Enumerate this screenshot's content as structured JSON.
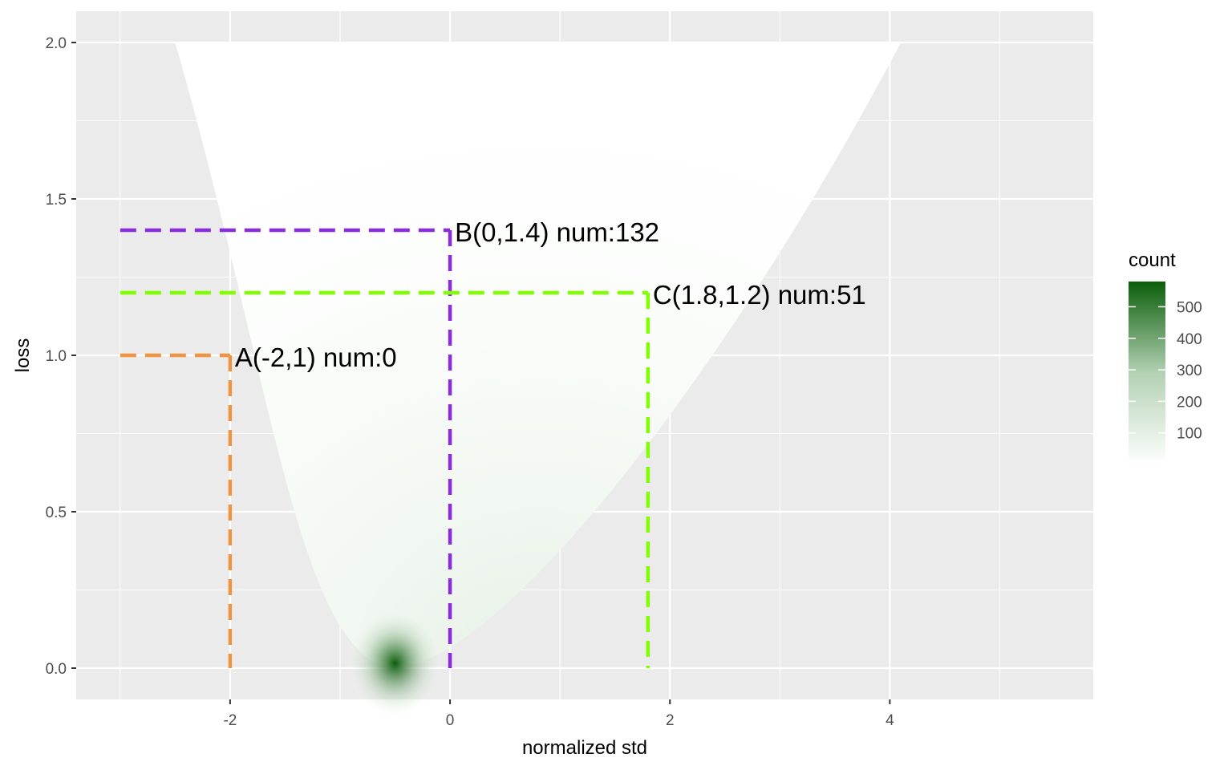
{
  "chart_data": {
    "type": "heatmap",
    "title": "",
    "xlabel": "normalized std",
    "ylabel": "loss",
    "xlim": [
      -3.4,
      5.85
    ],
    "ylim": [
      -0.1,
      2.1
    ],
    "x_ticks": [
      -2,
      0,
      2,
      4
    ],
    "x_tick_labels": [
      "-2",
      "0",
      "2",
      "4"
    ],
    "y_ticks": [
      0.0,
      0.5,
      1.0,
      1.5,
      2.0
    ],
    "y_tick_labels": [
      "0.0",
      "0.5",
      "1.0",
      "1.5",
      "2.0"
    ],
    "grid": true,
    "density": {
      "description_of_shape": "cone",
      "apex_x": -0.5,
      "apex_y": 0.0,
      "peak_count": 580,
      "half_width_at_top": 3.3,
      "top_center_x": 0.8
    },
    "legend": {
      "title": "count",
      "position": "right",
      "ticks": [
        100,
        200,
        300,
        400,
        500
      ],
      "tick_labels": [
        "100",
        "200",
        "300",
        "400",
        "500"
      ],
      "range": [
        0,
        580
      ],
      "color_low": "#ffffff",
      "color_high": "#0b5e0b"
    },
    "annotations": [
      {
        "id": "A",
        "x": -2,
        "y": 1.0,
        "label": "A(-2,1) num:0",
        "color": "#ef9441"
      },
      {
        "id": "B",
        "x": 0,
        "y": 1.4,
        "label": "B(0,1.4) num:132",
        "color": "#8a2be2"
      },
      {
        "id": "C",
        "x": 1.8,
        "y": 1.2,
        "label": "C(1.8,1.2) num:51",
        "color": "#7fff00"
      }
    ],
    "guide_line_start_x": -3.0,
    "panel_background": "#ebebeb",
    "grid_color": "#ffffff"
  }
}
